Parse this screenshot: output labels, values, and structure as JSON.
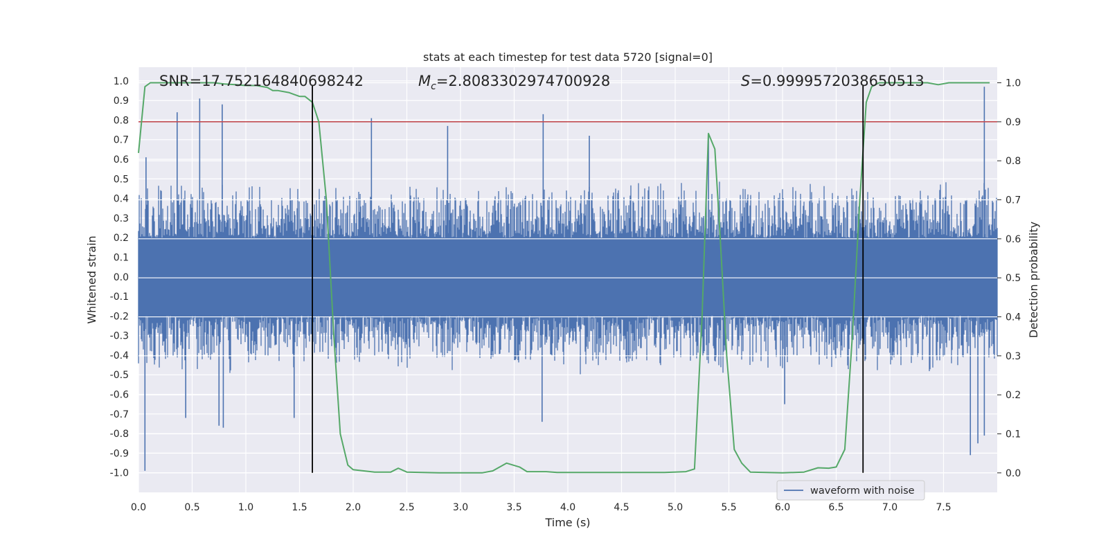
{
  "chart_data": {
    "type": "line",
    "title": "stats at each timestep for test data 5720 [signal=0]",
    "xlabel": "Time (s)",
    "ylabel_left": "Whitened strain",
    "ylabel_right": "Detection probability",
    "xlim": [
      0.0,
      8.0
    ],
    "ylim_left": [
      -1.1,
      1.07
    ],
    "ylim_right": [
      -0.05,
      1.04
    ],
    "x_ticks": [
      "0.0",
      "0.5",
      "1.0",
      "1.5",
      "2.0",
      "2.5",
      "3.0",
      "3.5",
      "4.0",
      "4.5",
      "5.0",
      "5.5",
      "6.0",
      "6.5",
      "7.0",
      "7.5"
    ],
    "x_tick_values": [
      0.0,
      0.5,
      1.0,
      1.5,
      2.0,
      2.5,
      3.0,
      3.5,
      4.0,
      4.5,
      5.0,
      5.5,
      6.0,
      6.5,
      7.0,
      7.5
    ],
    "y_left_ticks": [
      "1.0",
      "0.9",
      "0.8",
      "0.7",
      "0.6",
      "0.5",
      "0.4",
      "0.3",
      "0.2",
      "0.1",
      "0.0",
      "-0.1",
      "-0.2",
      "-0.3",
      "-0.4",
      "-0.5",
      "-0.6",
      "-0.7",
      "-0.8",
      "-0.9",
      "-1.0"
    ],
    "y_left_tick_values": [
      1.0,
      0.9,
      0.8,
      0.7,
      0.6,
      0.5,
      0.4,
      0.3,
      0.2,
      0.1,
      0.0,
      -0.1,
      -0.2,
      -0.3,
      -0.4,
      -0.5,
      -0.6,
      -0.7,
      -0.8,
      -0.9,
      -1.0
    ],
    "y_right_ticks": [
      "1.0",
      "0.9",
      "0.8",
      "0.7",
      "0.6",
      "0.5",
      "0.4",
      "0.3",
      "0.2",
      "0.1",
      "0.0"
    ],
    "y_right_tick_values": [
      1.0,
      0.9,
      0.8,
      0.7,
      0.6,
      0.5,
      0.4,
      0.3,
      0.2,
      0.1,
      0.0
    ],
    "grid": true,
    "annotations": {
      "snr": "SNR=17.752164840698242",
      "mc_symbol": "M",
      "mc_sub": "c",
      "mc_value": "=2.8083302974700928",
      "s_symbol": "S",
      "s_value": "=0.9999572038650513"
    },
    "threshold": {
      "value": 0.9,
      "axis": "right",
      "color": "#c44e52"
    },
    "vertical_lines": [
      1.62,
      6.75
    ],
    "series": [
      {
        "name": "waveform with noise",
        "axis": "left",
        "color": "#4c72b0",
        "summary": {
          "core_low": -0.2,
          "core_high": 0.2,
          "typical_max": 0.5,
          "typical_min": -0.5
        },
        "peaks": [
          [
            0.06,
            -0.99
          ],
          [
            0.07,
            0.61
          ],
          [
            0.36,
            0.84
          ],
          [
            0.57,
            0.91
          ],
          [
            0.78,
            0.88
          ],
          [
            0.75,
            -0.76
          ],
          [
            0.79,
            -0.77
          ],
          [
            0.44,
            -0.72
          ],
          [
            1.45,
            -0.72
          ],
          [
            2.17,
            0.81
          ],
          [
            3.77,
            0.83
          ],
          [
            3.76,
            -0.74
          ],
          [
            5.31,
            0.72
          ],
          [
            7.88,
            0.97
          ],
          [
            7.75,
            -0.91
          ],
          [
            7.82,
            -0.85
          ],
          [
            7.88,
            -0.81
          ],
          [
            6.02,
            -0.65
          ],
          [
            2.88,
            0.77
          ],
          [
            4.2,
            0.72
          ]
        ]
      },
      {
        "name": "detection probability",
        "axis": "right",
        "color": "#55a868",
        "points": [
          [
            0.0,
            0.82
          ],
          [
            0.06,
            0.99
          ],
          [
            0.11,
            1.0
          ],
          [
            0.2,
            1.0
          ],
          [
            0.3,
            1.0
          ],
          [
            0.4,
            1.0
          ],
          [
            0.5,
            1.0
          ],
          [
            0.6,
            1.0
          ],
          [
            0.7,
            1.0
          ],
          [
            0.8,
            0.997
          ],
          [
            0.9,
            0.995
          ],
          [
            1.0,
            0.993
          ],
          [
            1.1,
            0.993
          ],
          [
            1.2,
            0.988
          ],
          [
            1.25,
            0.98
          ],
          [
            1.3,
            0.98
          ],
          [
            1.4,
            0.975
          ],
          [
            1.45,
            0.97
          ],
          [
            1.5,
            0.965
          ],
          [
            1.55,
            0.965
          ],
          [
            1.62,
            0.95
          ],
          [
            1.68,
            0.9
          ],
          [
            1.75,
            0.7
          ],
          [
            1.82,
            0.35
          ],
          [
            1.88,
            0.1
          ],
          [
            1.95,
            0.02
          ],
          [
            2.0,
            0.008
          ],
          [
            2.1,
            0.005
          ],
          [
            2.2,
            0.002
          ],
          [
            2.35,
            0.002
          ],
          [
            2.42,
            0.012
          ],
          [
            2.5,
            0.002
          ],
          [
            2.8,
            0.0
          ],
          [
            3.2,
            0.0
          ],
          [
            3.3,
            0.005
          ],
          [
            3.43,
            0.025
          ],
          [
            3.55,
            0.015
          ],
          [
            3.62,
            0.003
          ],
          [
            3.8,
            0.003
          ],
          [
            3.9,
            0.001
          ],
          [
            4.2,
            0.001
          ],
          [
            4.5,
            0.001
          ],
          [
            4.9,
            0.001
          ],
          [
            5.1,
            0.003
          ],
          [
            5.18,
            0.01
          ],
          [
            5.25,
            0.4
          ],
          [
            5.31,
            0.87
          ],
          [
            5.37,
            0.83
          ],
          [
            5.42,
            0.6
          ],
          [
            5.48,
            0.3
          ],
          [
            5.55,
            0.06
          ],
          [
            5.62,
            0.025
          ],
          [
            5.7,
            0.002
          ],
          [
            6.0,
            0.0
          ],
          [
            6.2,
            0.002
          ],
          [
            6.33,
            0.013
          ],
          [
            6.43,
            0.012
          ],
          [
            6.5,
            0.015
          ],
          [
            6.58,
            0.06
          ],
          [
            6.65,
            0.35
          ],
          [
            6.72,
            0.7
          ],
          [
            6.78,
            0.95
          ],
          [
            6.83,
            0.99
          ],
          [
            6.9,
            1.0
          ],
          [
            7.2,
            1.0
          ],
          [
            7.35,
            1.0
          ],
          [
            7.45,
            0.995
          ],
          [
            7.55,
            1.0
          ],
          [
            7.75,
            1.0
          ],
          [
            7.93,
            1.0
          ]
        ]
      }
    ]
  }
}
